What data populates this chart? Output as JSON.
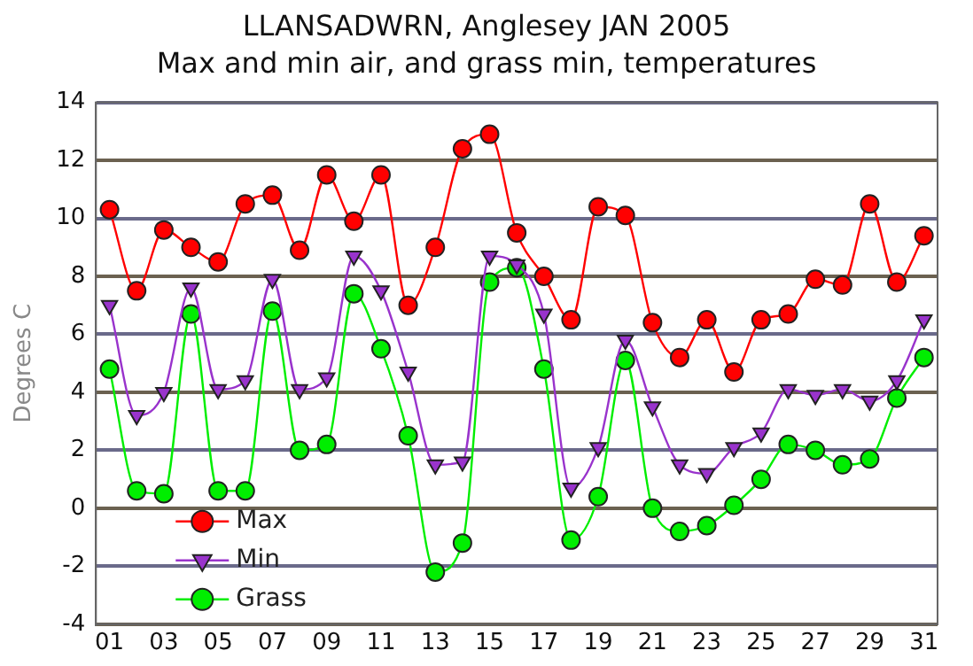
{
  "chart_data": {
    "type": "line",
    "title": "LLANSADWRN, Anglesey JAN 2005",
    "subtitle": "Max and min air, and grass min, temperatures",
    "ylabel": "Degrees C",
    "categories": [
      "01",
      null,
      "03",
      null,
      "05",
      null,
      "07",
      null,
      "09",
      null,
      "11",
      null,
      "13",
      null,
      "15",
      null,
      "17",
      null,
      "19",
      null,
      "21",
      null,
      "23",
      null,
      "25",
      null,
      "27",
      null,
      "29",
      null,
      "31"
    ],
    "ylim": [
      -4,
      14
    ],
    "yticks": [
      -4,
      -2,
      0,
      2,
      4,
      6,
      8,
      10,
      12,
      14
    ],
    "grid": "y",
    "legend": "bottom left",
    "series": [
      {
        "name": "Max",
        "color": "#ff0000",
        "marker": "circle",
        "values": [
          10.3,
          7.5,
          9.6,
          9.0,
          8.5,
          10.5,
          10.8,
          8.9,
          11.5,
          9.9,
          11.5,
          7.0,
          9.0,
          12.4,
          12.9,
          9.5,
          8.0,
          6.5,
          10.4,
          10.1,
          6.4,
          5.2,
          6.5,
          4.7,
          6.5,
          6.7,
          7.9,
          7.7,
          10.5,
          7.8,
          9.4
        ]
      },
      {
        "name": "Min",
        "color": "#9933cc",
        "marker": "triangle",
        "values": [
          7.0,
          3.2,
          4.0,
          7.6,
          4.1,
          4.4,
          7.9,
          4.1,
          4.5,
          8.7,
          7.5,
          4.7,
          1.5,
          1.6,
          8.7,
          8.4,
          6.7,
          0.7,
          2.1,
          5.8,
          3.5,
          1.5,
          1.2,
          2.1,
          2.6,
          4.1,
          3.9,
          4.1,
          3.7,
          4.4,
          6.5
        ]
      },
      {
        "name": "Grass",
        "color": "#00ee00",
        "marker": "circle",
        "values": [
          4.8,
          0.6,
          0.5,
          6.7,
          0.6,
          0.6,
          6.8,
          2.0,
          2.2,
          7.4,
          5.5,
          2.5,
          -2.2,
          -1.2,
          7.8,
          8.3,
          4.8,
          -1.1,
          0.4,
          5.1,
          0.0,
          -0.8,
          -0.6,
          0.1,
          1.0,
          2.2,
          2.0,
          1.5,
          1.7,
          3.8,
          5.2
        ]
      }
    ]
  }
}
